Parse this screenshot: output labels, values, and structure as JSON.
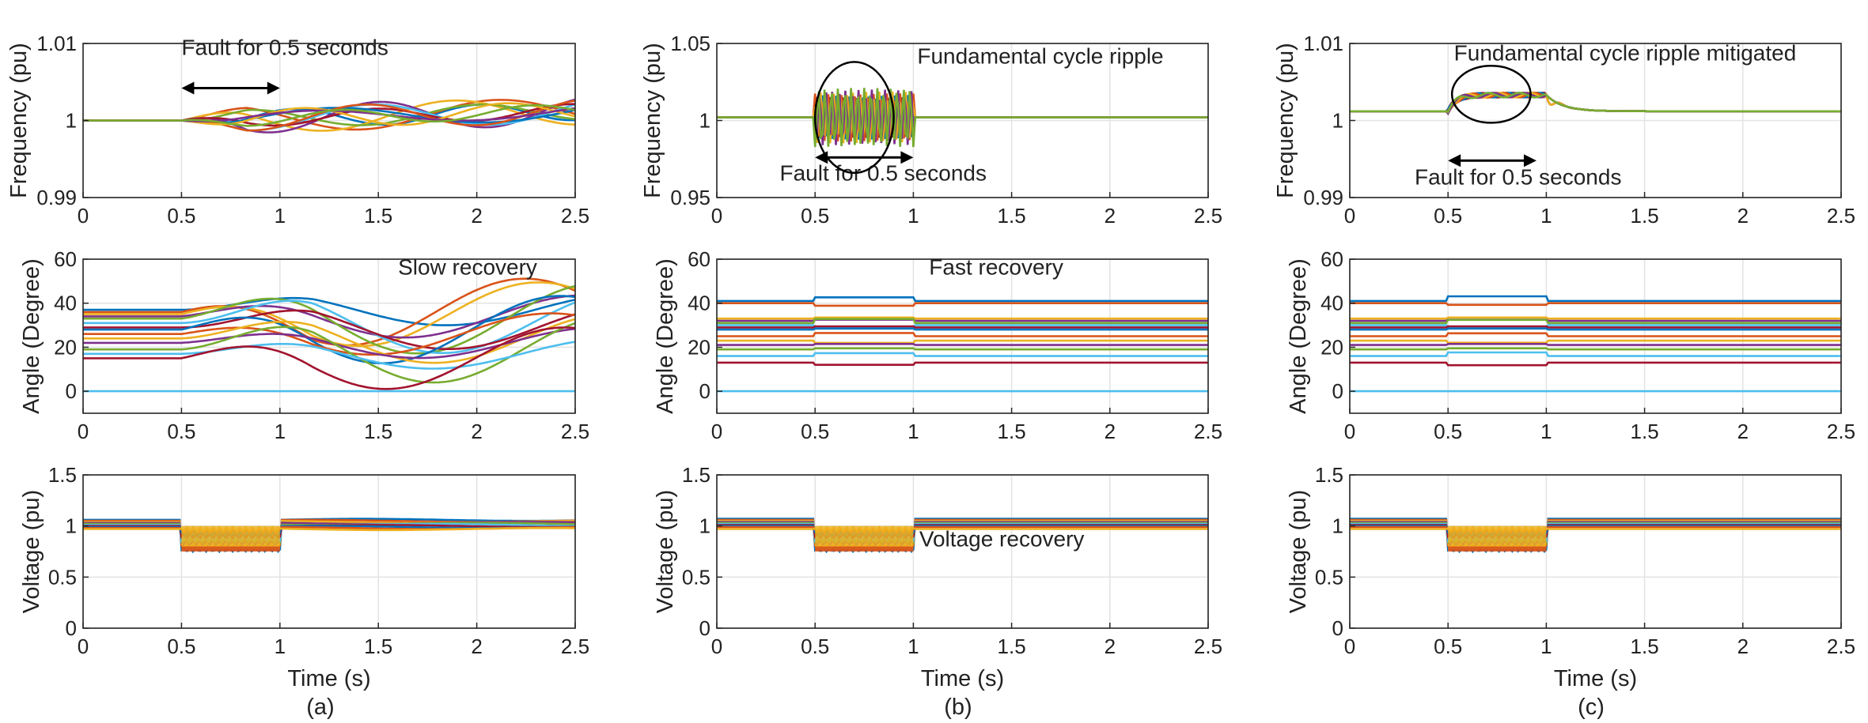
{
  "chart_data": [
    {
      "id": "a-frequency",
      "type": "line",
      "column": "a",
      "row": "frequency",
      "ylabel": "Frequency (pu)",
      "xlabel": "",
      "xlim": [
        0,
        2.5
      ],
      "ylim": [
        0.99,
        1.01
      ],
      "xticks": [
        "0",
        "0.5",
        "1",
        "1.5",
        "2",
        "2.5"
      ],
      "yticks": [
        "0.99",
        "1",
        "1.01"
      ],
      "grid": true,
      "annotations": [
        {
          "text": "Fault for 0.5 seconds",
          "x": 0.5,
          "y": 1.0085
        }
      ],
      "arrow": {
        "x1": 0.5,
        "x2": 1.0,
        "y": 1.0042
      },
      "series_count": 12,
      "behaviour": "undamped oscillation after fault, amplitude about 0.002 pu"
    },
    {
      "id": "b-frequency",
      "type": "line",
      "column": "b",
      "row": "frequency",
      "ylabel": "Frequency (pu)",
      "xlabel": "",
      "xlim": [
        0,
        2.5
      ],
      "ylim": [
        0.95,
        1.05
      ],
      "xticks": [
        "0",
        "0.5",
        "1",
        "1.5",
        "2",
        "2.5"
      ],
      "yticks": [
        "0.95",
        "1",
        "1.05"
      ],
      "grid": true,
      "annotations": [
        {
          "text": "Fundamental cycle ripple",
          "x": 1.02,
          "y": 1.037
        },
        {
          "text": "Fault for 0.5 seconds",
          "x": 0.32,
          "y": 0.961
        }
      ],
      "arrow": {
        "x1": 0.5,
        "x2": 1.0,
        "y": 0.976
      },
      "ellipse": {
        "cx": 0.7,
        "cy": 1.002,
        "rx": 0.2,
        "ry": 0.036
      },
      "series_count": 12,
      "behaviour": "ripple of about ±0.015 pu during fault, flat otherwise"
    },
    {
      "id": "c-frequency",
      "type": "line",
      "column": "c",
      "row": "frequency",
      "ylabel": "Frequency (pu)",
      "xlabel": "",
      "xlim": [
        0,
        2.5
      ],
      "ylim": [
        0.99,
        1.01
      ],
      "xticks": [
        "0",
        "0.5",
        "1",
        "1.5",
        "2",
        "2.5"
      ],
      "yticks": [
        "0.99",
        "1",
        "1.01"
      ],
      "grid": true,
      "annotations": [
        {
          "text": "Fundamental cycle ripple mitigated",
          "x": 0.53,
          "y": 1.0078
        },
        {
          "text": "Fault for 0.5 seconds",
          "x": 0.33,
          "y": 0.9917
        }
      ],
      "arrow": {
        "x1": 0.5,
        "x2": 0.95,
        "y": 0.9948
      },
      "ellipse": {
        "cx": 0.72,
        "cy": 1.0034,
        "rx": 0.2,
        "ry": 0.0037
      },
      "series_count": 12,
      "behaviour": "rise to about 1.003 pu during fault, settles by 1.3 s"
    },
    {
      "id": "a-angle",
      "type": "line",
      "column": "a",
      "row": "angle",
      "ylabel": "Angle (Degree)",
      "xlabel": "",
      "xlim": [
        0,
        2.5
      ],
      "ylim": [
        -10,
        60
      ],
      "xticks": [
        "0",
        "0.5",
        "1",
        "1.5",
        "2",
        "2.5"
      ],
      "yticks": [
        "0",
        "20",
        "40",
        "60"
      ],
      "grid": true,
      "annotations": [
        {
          "text": "Slow recovery",
          "x": 1.6,
          "y": 53
        }
      ],
      "series_count": 15,
      "initial_values": [
        37,
        36,
        35,
        34,
        33,
        31,
        29,
        28,
        26,
        24,
        22,
        19,
        17,
        15,
        0
      ],
      "behaviour": "large swings of up to ±15 degrees after the fault"
    },
    {
      "id": "b-angle",
      "type": "line",
      "column": "b",
      "row": "angle",
      "ylabel": "Angle (Degree)",
      "xlabel": "",
      "xlim": [
        0,
        2.5
      ],
      "ylim": [
        -10,
        60
      ],
      "xticks": [
        "0",
        "0.5",
        "1",
        "1.5",
        "2",
        "2.5"
      ],
      "yticks": [
        "0",
        "20",
        "40",
        "60"
      ],
      "grid": true,
      "annotations": [
        {
          "text": "Fast recovery",
          "x": 1.08,
          "y": 53
        }
      ],
      "series_count": 15,
      "initial_values": [
        41,
        40,
        33,
        32,
        31,
        30,
        29,
        28,
        25,
        23,
        21,
        19,
        16,
        13,
        0
      ],
      "behaviour": "small steps during the fault, back to steady state right after"
    },
    {
      "id": "c-angle",
      "type": "line",
      "column": "c",
      "row": "angle",
      "ylabel": "Angle (Degree)",
      "xlabel": "",
      "xlim": [
        0,
        2.5
      ],
      "ylim": [
        -10,
        60
      ],
      "xticks": [
        "0",
        "0.5",
        "1",
        "1.5",
        "2",
        "2.5"
      ],
      "yticks": [
        "0",
        "20",
        "40",
        "60"
      ],
      "grid": true,
      "annotations": [],
      "series_count": 15,
      "initial_values": [
        41,
        40,
        33,
        32,
        31,
        30,
        29,
        28,
        25,
        23,
        21,
        19,
        16,
        13,
        0
      ],
      "behaviour": "small steps during the fault, back to steady state right after"
    },
    {
      "id": "a-voltage",
      "type": "line",
      "column": "a",
      "row": "voltage",
      "ylabel": "Voltage (pu)",
      "xlabel": "Time (s)",
      "xlim": [
        0,
        2.5
      ],
      "ylim": [
        0,
        1.5
      ],
      "xticks": [
        "0",
        "0.5",
        "1",
        "1.5",
        "2",
        "2.5"
      ],
      "yticks": [
        "0",
        "0.5",
        "1",
        "1.5"
      ],
      "grid": true,
      "annotations": [],
      "series_count": 10,
      "initial_values": [
        1.06,
        1.05,
        1.04,
        1.03,
        1.02,
        1.01,
        1.0,
        0.99,
        0.98,
        0.97
      ],
      "behaviour": "drops to about 0.76-1.0 pu between 0.5 s and 1 s"
    },
    {
      "id": "b-voltage",
      "type": "line",
      "column": "b",
      "row": "voltage",
      "ylabel": "Voltage (pu)",
      "xlabel": "Time (s)",
      "xlim": [
        0,
        2.5
      ],
      "ylim": [
        0,
        1.5
      ],
      "xticks": [
        "0",
        "0.5",
        "1",
        "1.5",
        "2",
        "2.5"
      ],
      "yticks": [
        "0",
        "0.5",
        "1",
        "1.5"
      ],
      "grid": true,
      "annotations": [
        {
          "text": "Voltage recovery",
          "x": 1.03,
          "y": 0.8
        }
      ],
      "series_count": 10,
      "initial_values": [
        1.07,
        1.06,
        1.05,
        1.04,
        1.03,
        1.02,
        1.01,
        1.0,
        0.99,
        0.97
      ],
      "behaviour": "drops to about 0.77-1.0 pu between 0.5 s and 1 s"
    },
    {
      "id": "c-voltage",
      "type": "line",
      "column": "c",
      "row": "voltage",
      "ylabel": "Voltage (pu)",
      "xlabel": "Time (s)",
      "xlim": [
        0,
        2.5
      ],
      "ylim": [
        0,
        1.5
      ],
      "xticks": [
        "0",
        "0.5",
        "1",
        "1.5",
        "2",
        "2.5"
      ],
      "yticks": [
        "0",
        "0.5",
        "1",
        "1.5"
      ],
      "grid": true,
      "annotations": [],
      "series_count": 10,
      "initial_values": [
        1.07,
        1.06,
        1.05,
        1.04,
        1.03,
        1.02,
        1.01,
        1.0,
        0.99,
        0.97
      ],
      "behaviour": "drops to about 0.77-1.0 pu between 0.5 s and 1 s"
    }
  ],
  "panel_labels": {
    "a": "(a)",
    "b": "(b)",
    "c": "(c)"
  },
  "colors": {
    "series": [
      "#0072BD",
      "#D95319",
      "#EDB120",
      "#7E2F8E",
      "#77AC30",
      "#4DBEEE",
      "#A2142F"
    ],
    "zero_line": "#4DBEEE",
    "grid": "#e3e3e3",
    "axes": "#262626"
  }
}
